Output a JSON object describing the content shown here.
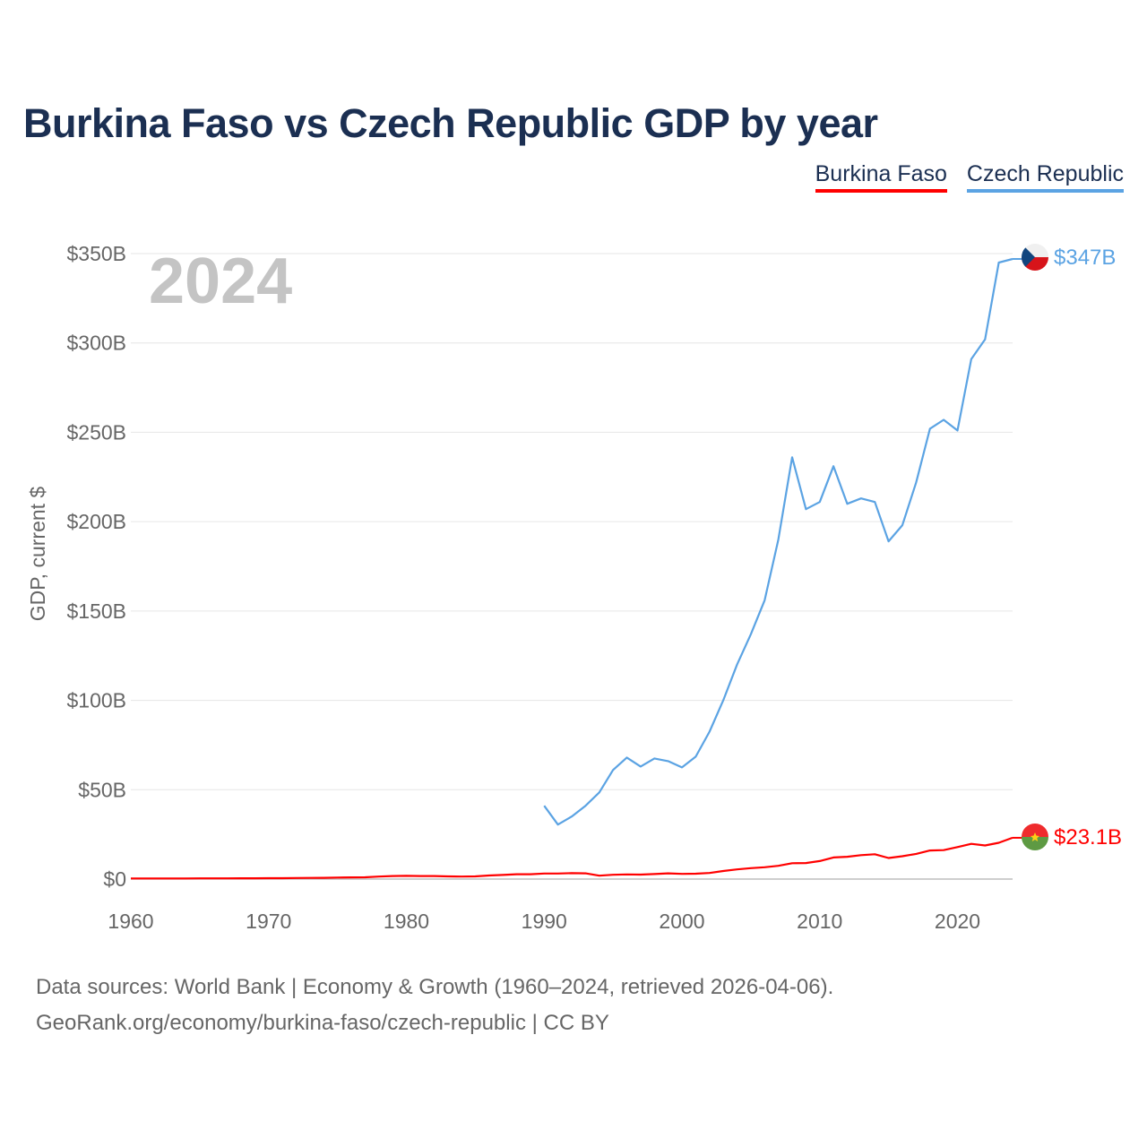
{
  "chart_data": {
    "type": "line",
    "title": "Burkina Faso vs Czech Republic GDP by year",
    "ylabel": "GDP, current $",
    "xlabel": "",
    "year_label": "2024",
    "xlim": [
      1960,
      2024
    ],
    "ylim": [
      0,
      350
    ],
    "y_unit": "billions USD",
    "x_ticks": [
      "1960",
      "1970",
      "1980",
      "1990",
      "2000",
      "2010",
      "2020"
    ],
    "y_ticks": [
      {
        "value": 0,
        "label": "$0"
      },
      {
        "value": 50,
        "label": "$50B"
      },
      {
        "value": 100,
        "label": "$100B"
      },
      {
        "value": 150,
        "label": "$150B"
      },
      {
        "value": 200,
        "label": "$200B"
      },
      {
        "value": 250,
        "label": "$250B"
      },
      {
        "value": 300,
        "label": "$300B"
      },
      {
        "value": 350,
        "label": "$350B"
      }
    ],
    "grid": true,
    "legend_position": "top-right",
    "series": [
      {
        "name": "Burkina Faso",
        "color": "#ff0000",
        "end_label": "$23.1B",
        "flag_icon": "burkina-faso-flag-icon",
        "x": [
          1960,
          1961,
          1962,
          1963,
          1964,
          1965,
          1966,
          1967,
          1968,
          1969,
          1970,
          1971,
          1972,
          1973,
          1974,
          1975,
          1976,
          1977,
          1978,
          1979,
          1980,
          1981,
          1982,
          1983,
          1984,
          1985,
          1986,
          1987,
          1988,
          1989,
          1990,
          1991,
          1992,
          1993,
          1994,
          1995,
          1996,
          1997,
          1998,
          1999,
          2000,
          2001,
          2002,
          2003,
          2004,
          2005,
          2006,
          2007,
          2008,
          2009,
          2010,
          2011,
          2012,
          2013,
          2014,
          2015,
          2016,
          2017,
          2018,
          2019,
          2020,
          2021,
          2022,
          2023,
          2024
        ],
        "values": [
          0.33,
          0.34,
          0.35,
          0.36,
          0.37,
          0.38,
          0.39,
          0.41,
          0.43,
          0.45,
          0.48,
          0.52,
          0.6,
          0.65,
          0.7,
          0.85,
          0.95,
          1.0,
          1.4,
          1.7,
          1.8,
          1.7,
          1.7,
          1.5,
          1.4,
          1.5,
          2.0,
          2.3,
          2.7,
          2.7,
          3.1,
          3.1,
          3.3,
          3.2,
          1.9,
          2.4,
          2.6,
          2.5,
          2.8,
          3.2,
          2.9,
          3.0,
          3.4,
          4.5,
          5.4,
          6.1,
          6.6,
          7.4,
          8.9,
          9.0,
          10.1,
          12.1,
          12.5,
          13.4,
          13.9,
          11.8,
          12.8,
          14.1,
          16.0,
          16.2,
          17.9,
          19.7,
          18.8,
          20.3,
          23.1
        ]
      },
      {
        "name": "Czech Republic",
        "color": "#5ba3e3",
        "end_label": "$347B",
        "flag_icon": "czech-republic-flag-icon",
        "x": [
          1990,
          1991,
          1992,
          1993,
          1994,
          1995,
          1996,
          1997,
          1998,
          1999,
          2000,
          2001,
          2002,
          2003,
          2004,
          2005,
          2006,
          2007,
          2008,
          2009,
          2010,
          2011,
          2012,
          2013,
          2014,
          2015,
          2016,
          2017,
          2018,
          2019,
          2020,
          2021,
          2022,
          2023,
          2024
        ],
        "values": [
          41,
          30.5,
          35,
          41,
          48.5,
          61,
          68,
          63,
          67.5,
          66,
          62.5,
          68.5,
          82.5,
          100,
          120,
          137,
          156,
          190,
          236,
          207,
          211,
          231,
          210,
          213,
          211,
          189,
          198,
          222,
          252,
          257,
          251,
          291,
          302,
          345,
          347
        ]
      }
    ]
  },
  "legend": {
    "items": [
      {
        "label": "Burkina Faso",
        "color": "#ff0000"
      },
      {
        "label": "Czech Republic",
        "color": "#5ba3e3"
      }
    ]
  },
  "footer": {
    "line1": "Data sources: World Bank | Economy & Growth (1960–2024, retrieved 2026-04-06).",
    "line2": "GeoRank.org/economy/burkina-faso/czech-republic | CC BY"
  }
}
